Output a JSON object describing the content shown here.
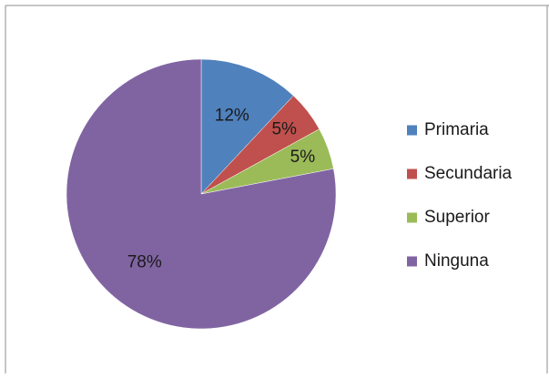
{
  "chart_data": {
    "type": "pie",
    "title": "",
    "legend_position": "right",
    "slices": [
      {
        "label": "Primaria",
        "value": 12,
        "display": "12%",
        "color": "#4F81BD"
      },
      {
        "label": "Secundaria",
        "value": 5,
        "display": "5%",
        "color": "#C0504D"
      },
      {
        "label": "Superior",
        "value": 5,
        "display": "5%",
        "color": "#9BBB59"
      },
      {
        "label": "Ninguna",
        "value": 78,
        "display": "78%",
        "color": "#8064A2"
      }
    ]
  }
}
